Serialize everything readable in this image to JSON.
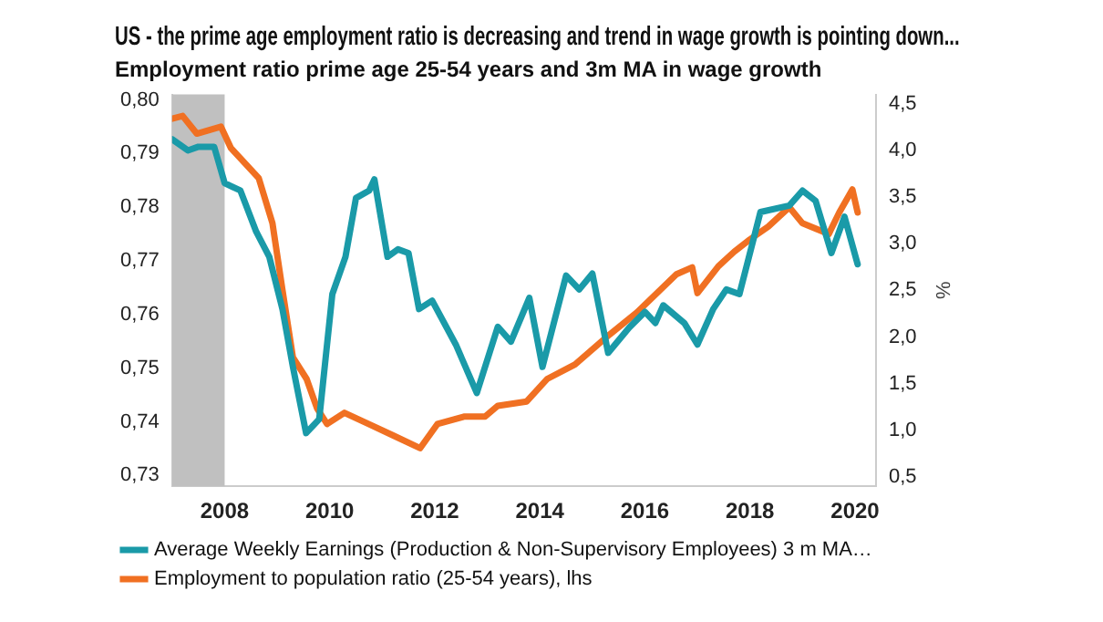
{
  "chart_data": {
    "type": "line",
    "title": "US - the prime age employment ratio is decreasing and trend in wage growth is pointing down...",
    "subtitle": "Employment ratio prime age 25-54 years and 3m MA in wage growth",
    "y2label": "%",
    "xlim": [
      2007,
      2020.4
    ],
    "xticks": [
      2008,
      2010,
      2012,
      2014,
      2016,
      2018,
      2020
    ],
    "ylim": [
      0.728,
      0.801
    ],
    "yticks": [
      {
        "value": 0.73,
        "label": "0,73"
      },
      {
        "value": 0.74,
        "label": "0,74"
      },
      {
        "value": 0.75,
        "label": "0,75"
      },
      {
        "value": 0.76,
        "label": "0,76"
      },
      {
        "value": 0.77,
        "label": "0,77"
      },
      {
        "value": 0.78,
        "label": "0,78"
      },
      {
        "value": 0.79,
        "label": "0,79"
      },
      {
        "value": 0.8,
        "label": "0,80"
      }
    ],
    "y2lim": [
      0.4,
      4.6
    ],
    "y2ticks": [
      {
        "value": 0.5,
        "label": "0,5"
      },
      {
        "value": 1,
        "label": "1,0"
      },
      {
        "value": 1.5,
        "label": "1,5"
      },
      {
        "value": 2,
        "label": "2,0"
      },
      {
        "value": 2.5,
        "label": "2,5"
      },
      {
        "value": 3,
        "label": "3,0"
      },
      {
        "value": 3.5,
        "label": "3,5"
      },
      {
        "value": 4,
        "label": "4,0"
      },
      {
        "value": 4.5,
        "label": "4,5"
      }
    ],
    "series": [
      {
        "name": "Average Weekly Earnings (Production & Non-Supervisory Employees) 3 m MA…",
        "color": "#1a9aa8",
        "axis": "y2",
        "x": [
          2007.0,
          2007.3,
          2007.5,
          2007.8,
          2008.0,
          2008.3,
          2008.6,
          2008.85,
          2009.1,
          2009.3,
          2009.55,
          2009.8,
          2010.05,
          2010.3,
          2010.5,
          2010.75,
          2010.85,
          2011.1,
          2011.3,
          2011.5,
          2011.7,
          2011.95,
          2012.4,
          2012.8,
          2013.2,
          2013.45,
          2013.8,
          2014.05,
          2014.5,
          2014.75,
          2015.0,
          2015.3,
          2015.7,
          2016.0,
          2016.2,
          2016.35,
          2016.75,
          2017.0,
          2017.3,
          2017.55,
          2017.8,
          2018.2,
          2018.75,
          2019.0,
          2019.25,
          2019.55,
          2019.8,
          2020.05
        ],
        "values": [
          4.12,
          4.0,
          4.04,
          4.04,
          3.65,
          3.57,
          3.13,
          2.86,
          2.3,
          1.68,
          0.97,
          1.12,
          2.46,
          2.86,
          3.49,
          3.57,
          3.69,
          2.86,
          2.94,
          2.9,
          2.3,
          2.39,
          1.92,
          1.4,
          2.11,
          1.95,
          2.42,
          1.68,
          2.66,
          2.51,
          2.68,
          1.83,
          2.1,
          2.27,
          2.15,
          2.34,
          2.15,
          1.92,
          2.3,
          2.51,
          2.46,
          3.34,
          3.41,
          3.57,
          3.46,
          2.9,
          3.29,
          2.78
        ]
      },
      {
        "name": "Employment to population ratio (25-54 years), lhs",
        "color": "#f07022",
        "axis": "y",
        "x": [
          2007.0,
          2007.2,
          2007.47,
          2007.93,
          2008.12,
          2008.65,
          2008.91,
          2009.1,
          2009.3,
          2009.56,
          2009.76,
          2009.95,
          2010.28,
          2010.74,
          2011.2,
          2011.72,
          2012.05,
          2012.57,
          2012.96,
          2013.2,
          2013.75,
          2014.14,
          2014.67,
          2015.33,
          2015.85,
          2016.6,
          2016.9,
          2017.0,
          2017.4,
          2017.7,
          2018.0,
          2018.35,
          2018.75,
          2019.0,
          2019.5,
          2019.7,
          2019.95,
          2020.05
        ],
        "values": [
          0.7965,
          0.797,
          0.7937,
          0.795,
          0.791,
          0.7854,
          0.777,
          0.7646,
          0.752,
          0.748,
          0.7425,
          0.7396,
          0.7417,
          0.7396,
          0.7375,
          0.7351,
          0.7396,
          0.741,
          0.741,
          0.743,
          0.7438,
          0.748,
          0.7507,
          0.7563,
          0.7604,
          0.7675,
          0.7688,
          0.764,
          0.769,
          0.7717,
          0.774,
          0.7764,
          0.78,
          0.777,
          0.775,
          0.779,
          0.7833,
          0.779
        ]
      }
    ],
    "bands": [
      {
        "axis": "x",
        "from": 2007,
        "to": 2008,
        "color": "#c0c0c0"
      }
    ],
    "legend": "bottom",
    "grid": false,
    "marker": "none",
    "line_style": "solid"
  }
}
